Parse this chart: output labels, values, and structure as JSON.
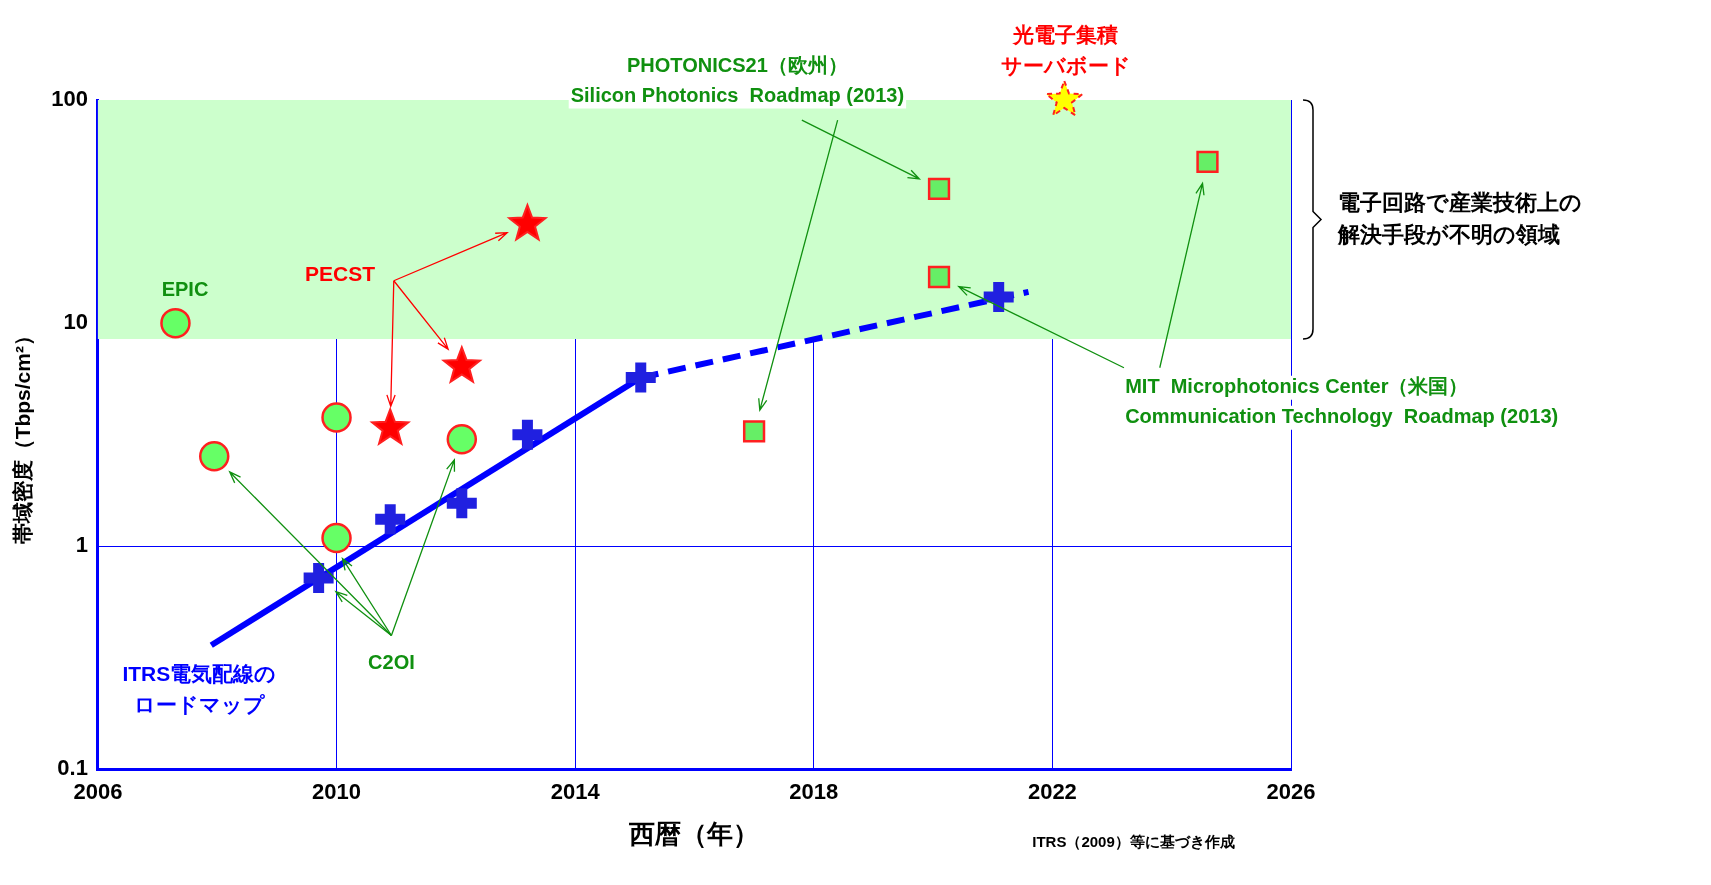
{
  "chart_data": {
    "type": "scatter",
    "xlabel": "西暦（年）",
    "ylabel": "帯域密度（Tbps/cm²）",
    "xlim": [
      2006,
      2026
    ],
    "xticks": [
      2006,
      2010,
      2014,
      2018,
      2022,
      2026
    ],
    "ylim": [
      0.1,
      100
    ],
    "yticks": [
      0.1,
      1,
      10,
      100
    ],
    "log": "y",
    "grid": true,
    "legend": false,
    "bands": [
      {
        "axis": "y",
        "from": 8.5,
        "to": 100,
        "label": "電子回路で産業技術上の解決手段が不明の領域",
        "color": "#ccffcc"
      }
    ],
    "series": [
      {
        "type": "line",
        "name": "ITRS電気配線のロードマップ",
        "color": "#0000ff",
        "x": [
          2007.9,
          2015.1
        ],
        "values": [
          0.36,
          5.7
        ],
        "line_style": "solid",
        "marker": "none"
      },
      {
        "type": "line",
        "color": "#0000ff",
        "x": [
          2015.1,
          2021.6
        ],
        "values": [
          5.7,
          13.8
        ],
        "line_style": "dashed",
        "marker": "none"
      },
      {
        "marker": "cross",
        "color": "#2020e0",
        "x": [
          2009.7,
          2010.9,
          2012.1,
          2013.2,
          2015.1,
          2021.1
        ],
        "values": [
          0.72,
          1.32,
          1.56,
          3.16,
          5.7,
          13.1
        ]
      },
      {
        "marker": "circle",
        "color": "#66ff66",
        "x": [
          2007.3,
          2007.95,
          2010.0,
          2010.0,
          2012.1
        ],
        "values": [
          10,
          2.53,
          3.78,
          1.09,
          3.02
        ]
      },
      {
        "marker": "star",
        "name": "PECST",
        "color": "#ff0000",
        "x": [
          2010.9,
          2012.1,
          2013.2
        ],
        "values": [
          3.38,
          6.4,
          27.8
        ]
      },
      {
        "marker": "star",
        "name": "光電子集積サーバボード",
        "color": "#ffff00",
        "x": [
          2022.2
        ],
        "values": [
          100
        ]
      },
      {
        "marker": "square",
        "color": "#66ee66",
        "x": [
          2020.1,
          2020.1,
          2017.0,
          2024.6
        ],
        "values": [
          40,
          16.1,
          3.27,
          52.8
        ]
      }
    ],
    "annotations": [
      "EPIC",
      {
        "text": "C2OI",
        "x": 2010.1,
        "y": 0.88
      },
      "PHOTONICS21（欧州）\nSilicon Photonics  Roadmap (2013)",
      "MIT  Microphotonics Center（米国）\nCommunication Technology  Roadmap (2013)",
      "ITRS（2009）等に基づき作成"
    ]
  }
}
